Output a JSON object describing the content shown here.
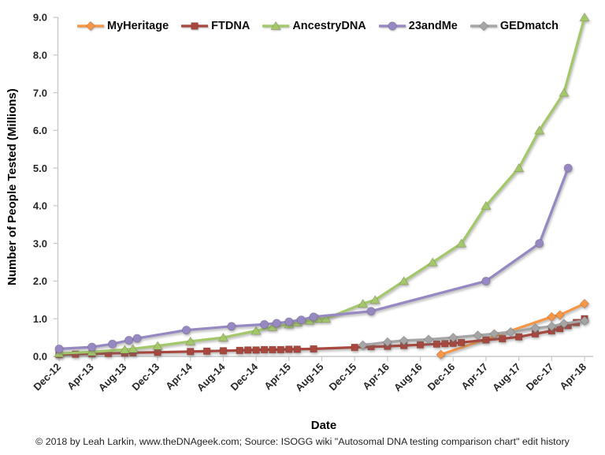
{
  "chart_data": {
    "type": "line",
    "title": "",
    "xlabel": "Date",
    "ylabel": "Number of People Tested (Millions)",
    "ylim": [
      0,
      9
    ],
    "grid": false,
    "legend_position": "top",
    "x_axis_note": "x values are months since Dec-2012 (0 = Dec-12, 64 = Apr-18); tick labels every 4 months",
    "x_ticklabels": [
      "Dec-12",
      "Apr-13",
      "Aug-13",
      "Dec-13",
      "Apr-14",
      "Aug-14",
      "Dec-14",
      "Apr-15",
      "Aug-15",
      "Dec-15",
      "Apr-16",
      "Aug-16",
      "Dec-16",
      "Apr-17",
      "Aug-17",
      "Dec-17",
      "Apr-18"
    ],
    "y_ticklabels": [
      "0.0",
      "1.0",
      "2.0",
      "3.0",
      "4.0",
      "5.0",
      "6.0",
      "7.0",
      "8.0",
      "9.0"
    ],
    "series": [
      {
        "name": "MyHeritage",
        "color": "#F79646",
        "marker": "diamond",
        "points": [
          [
            46.5,
            0.05
          ],
          [
            60,
            1.05
          ],
          [
            61,
            1.1
          ],
          [
            64,
            1.4
          ]
        ]
      },
      {
        "name": "FTDNA",
        "color": "#A8473E",
        "marker": "square",
        "points": [
          [
            0,
            0.05
          ],
          [
            2,
            0.06
          ],
          [
            4,
            0.07
          ],
          [
            6,
            0.08
          ],
          [
            8,
            0.09
          ],
          [
            9,
            0.1
          ],
          [
            12,
            0.11
          ],
          [
            16,
            0.13
          ],
          [
            18,
            0.14
          ],
          [
            20,
            0.15
          ],
          [
            22,
            0.16
          ],
          [
            23,
            0.17
          ],
          [
            24,
            0.17
          ],
          [
            25,
            0.18
          ],
          [
            26,
            0.18
          ],
          [
            27,
            0.18
          ],
          [
            28,
            0.19
          ],
          [
            29,
            0.19
          ],
          [
            31,
            0.2
          ],
          [
            36,
            0.24
          ],
          [
            38,
            0.26
          ],
          [
            40,
            0.27
          ],
          [
            42,
            0.29
          ],
          [
            44,
            0.31
          ],
          [
            46,
            0.33
          ],
          [
            47,
            0.34
          ],
          [
            48,
            0.35
          ],
          [
            49,
            0.37
          ],
          [
            52,
            0.44
          ],
          [
            54,
            0.47
          ],
          [
            56,
            0.52
          ],
          [
            58,
            0.6
          ],
          [
            60,
            0.68
          ],
          [
            61,
            0.74
          ],
          [
            62,
            0.82
          ],
          [
            63,
            0.9
          ],
          [
            64,
            1.0
          ]
        ]
      },
      {
        "name": "AncestryDNA",
        "color": "#A3C86A",
        "marker": "triangle",
        "points": [
          [
            0,
            0.08
          ],
          [
            4,
            0.12
          ],
          [
            8,
            0.18
          ],
          [
            9,
            0.2
          ],
          [
            12,
            0.28
          ],
          [
            16,
            0.4
          ],
          [
            20,
            0.5
          ],
          [
            24,
            0.68
          ],
          [
            26,
            0.78
          ],
          [
            28,
            0.85
          ],
          [
            29,
            0.9
          ],
          [
            30.5,
            0.95
          ],
          [
            31.5,
            1.0
          ],
          [
            32.5,
            1.0
          ],
          [
            37,
            1.4
          ],
          [
            38.5,
            1.5
          ],
          [
            42,
            2.0
          ],
          [
            45.5,
            2.5
          ],
          [
            49,
            3.0
          ],
          [
            52,
            4.0
          ],
          [
            56,
            5.0
          ],
          [
            58.5,
            6.0
          ],
          [
            61.5,
            7.0
          ],
          [
            64,
            9.0
          ]
        ]
      },
      {
        "name": "23andMe",
        "color": "#9688C2",
        "marker": "circle",
        "points": [
          [
            0,
            0.2
          ],
          [
            4,
            0.25
          ],
          [
            6.5,
            0.33
          ],
          [
            8.5,
            0.43
          ],
          [
            9.5,
            0.48
          ],
          [
            15.5,
            0.7
          ],
          [
            21,
            0.8
          ],
          [
            25,
            0.85
          ],
          [
            26.5,
            0.88
          ],
          [
            28,
            0.92
          ],
          [
            29.5,
            0.97
          ],
          [
            31,
            1.05
          ],
          [
            38,
            1.2
          ],
          [
            52,
            2.0
          ],
          [
            58.5,
            3.0
          ],
          [
            62,
            5.0
          ]
        ]
      },
      {
        "name": "GEDmatch",
        "color": "#A5A5A5",
        "marker": "diamond",
        "points": [
          [
            37,
            0.3
          ],
          [
            40,
            0.38
          ],
          [
            42,
            0.42
          ],
          [
            45,
            0.45
          ],
          [
            48,
            0.5
          ],
          [
            51,
            0.56
          ],
          [
            53,
            0.6
          ],
          [
            55,
            0.65
          ],
          [
            58,
            0.75
          ],
          [
            60,
            0.8
          ],
          [
            61.5,
            0.87
          ],
          [
            64,
            0.95
          ]
        ]
      }
    ]
  },
  "footer": {
    "credit": "© 2018 by Leah Larkin, www.theDNAgeek.com; Source: ISOGG wiki \"Autosomal DNA testing comparison chart\" edit history"
  }
}
